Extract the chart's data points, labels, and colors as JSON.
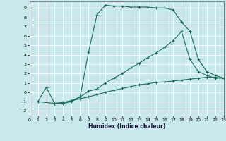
{
  "xlabel": "Humidex (Indice chaleur)",
  "bg_color": "#c8e8ec",
  "line_color": "#1a6b5a",
  "grid_color": "#b0d8dc",
  "xlim": [
    0,
    23
  ],
  "ylim": [
    -2.5,
    9.7
  ],
  "xticks": [
    0,
    1,
    2,
    3,
    4,
    5,
    6,
    7,
    8,
    9,
    10,
    11,
    12,
    13,
    14,
    15,
    16,
    17,
    18,
    19,
    20,
    21,
    22,
    23
  ],
  "yticks": [
    -2,
    -1,
    0,
    1,
    2,
    3,
    4,
    5,
    6,
    7,
    8,
    9
  ],
  "curve1_x": [
    1,
    2,
    3,
    4,
    5,
    6,
    7,
    8,
    9,
    10,
    11,
    12,
    13,
    14,
    15,
    16,
    17,
    18,
    19,
    20,
    21,
    22,
    23
  ],
  "curve1_y": [
    -1.0,
    0.5,
    -1.2,
    -1.2,
    -1.0,
    -0.5,
    4.3,
    8.3,
    9.3,
    9.2,
    9.2,
    9.1,
    9.1,
    9.1,
    9.0,
    9.0,
    8.8,
    7.5,
    6.5,
    3.5,
    2.2,
    1.8,
    1.5
  ],
  "curve2_x": [
    3,
    4,
    5,
    6,
    7,
    8,
    9,
    10,
    11,
    12,
    13,
    14,
    15,
    16,
    17,
    18,
    19,
    20,
    21,
    22,
    23
  ],
  "curve2_y": [
    -1.2,
    -1.1,
    -0.9,
    -0.5,
    0.1,
    0.35,
    1.0,
    1.5,
    2.0,
    2.6,
    3.1,
    3.7,
    4.2,
    4.8,
    5.5,
    6.5,
    3.5,
    2.2,
    1.8,
    1.5,
    1.5
  ],
  "curve3_x": [
    1,
    3,
    4,
    5,
    6,
    7,
    8,
    9,
    10,
    11,
    12,
    13,
    14,
    15,
    16,
    17,
    18,
    19,
    20,
    21,
    22,
    23
  ],
  "curve3_y": [
    -1.0,
    -1.2,
    -1.1,
    -0.9,
    -0.7,
    -0.5,
    -0.25,
    0.0,
    0.2,
    0.4,
    0.6,
    0.8,
    0.9,
    1.05,
    1.1,
    1.2,
    1.3,
    1.4,
    1.5,
    1.6,
    1.6,
    1.5
  ]
}
